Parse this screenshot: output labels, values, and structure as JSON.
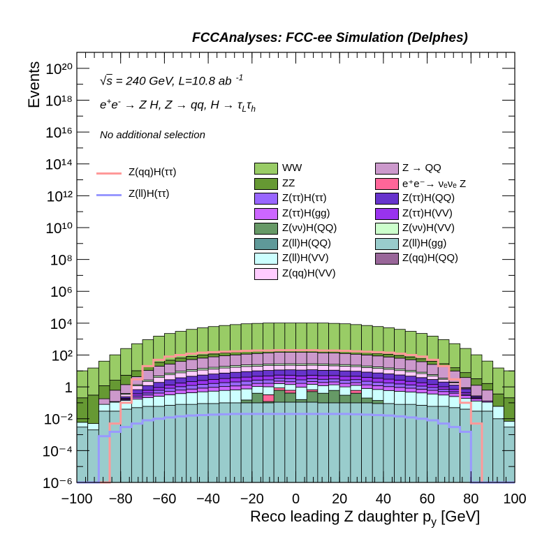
{
  "header": {
    "title": "FCCAnalyses: FCC-ee Simulation (Delphes)"
  },
  "info": {
    "line1": "√s = 240 GeV, L=10.8 ab⁻¹",
    "line2": "e⁺e⁻ → Z H, Z → qq, H → τ_L τ_h",
    "line3": "No additional selection"
  },
  "chart_data": {
    "type": "bar",
    "title": "",
    "xlabel": "Reco leading Z daughter p_y [GeV]",
    "ylabel": "Events",
    "xlim": [
      -100,
      100
    ],
    "ylim": [
      1e-06,
      1e+21
    ],
    "log_y": true,
    "bins": 40,
    "bin_width": 5,
    "grid": false,
    "legend_placement": "top",
    "xticks": [
      "−100",
      "−80",
      "−60",
      "−40",
      "−20",
      "0",
      "20",
      "40",
      "60",
      "80",
      "100"
    ],
    "yticks": [
      "10⁻⁶",
      "10⁻⁴",
      "10⁻²",
      "1",
      "10²",
      "10⁴",
      "10⁶",
      "10⁸",
      "10¹⁰",
      "10¹²",
      "10¹⁴",
      "10¹⁶",
      "10¹⁸",
      "10²⁰"
    ],
    "stack_order_note": "stacked, bottom to top",
    "stack": [
      {
        "name": "Z(ll)H(gg)",
        "color": "#99cccc",
        "values": [
          0.003,
          0.002,
          0.03,
          0.03,
          0.04,
          0.05,
          0.06,
          0.06,
          0.07,
          0.08,
          0.08,
          0.09,
          0.09,
          0.1,
          0.1,
          0.1,
          0.1,
          0.1,
          0.11,
          0.11,
          0.11,
          0.11,
          0.1,
          0.1,
          0.1,
          0.1,
          0.1,
          0.09,
          0.09,
          0.08,
          0.08,
          0.07,
          0.06,
          0.06,
          0.05,
          0.04,
          0.03,
          0.03,
          0.01,
          0.003
        ]
      },
      {
        "name": "Z(qq)H(QQ)",
        "color": "#996699",
        "values": [
          0,
          0,
          0,
          0,
          0,
          0,
          0,
          0,
          0,
          0,
          0,
          0,
          0,
          0,
          0,
          0,
          0,
          0,
          0,
          0,
          0,
          0,
          0,
          0,
          0,
          0,
          0,
          0,
          0,
          0,
          0,
          0,
          0,
          0,
          0,
          0,
          0,
          0,
          0,
          0
        ]
      },
      {
        "name": "Z(ll)H(QQ)",
        "color": "#5f9999",
        "values": [
          0,
          0,
          0,
          0,
          0,
          0,
          0,
          0,
          0,
          0,
          0,
          0,
          0,
          0,
          0,
          0,
          0,
          0,
          0,
          0,
          0,
          0,
          0,
          0,
          0,
          0,
          0,
          0,
          0,
          0,
          0,
          0,
          0,
          0,
          0,
          0,
          0,
          0,
          0,
          0
        ]
      },
      {
        "name": "Z(νν)H(QQ)",
        "color": "#669966",
        "values": [
          0,
          0,
          0,
          0,
          0,
          0,
          0,
          0,
          0,
          0,
          0,
          0,
          0,
          0,
          0,
          0.05,
          0.3,
          0.02,
          0.5,
          0.3,
          0.05,
          0.4,
          0.3,
          0.5,
          0.2,
          0.3,
          0.1,
          0.05,
          0,
          0,
          0,
          0,
          0,
          0,
          0,
          0,
          0,
          0,
          0,
          0
        ]
      },
      {
        "name": "e⁺e⁻→ νₑνₑ Z",
        "color": "#ff6699",
        "values": [
          0,
          0,
          0,
          0,
          0,
          0,
          0,
          0,
          0,
          0,
          0,
          0,
          0,
          0,
          0,
          0,
          0,
          0.2,
          0.25,
          0.2,
          0.0,
          0.15,
          0,
          0,
          0,
          0.2,
          0,
          0,
          0,
          0,
          0,
          0,
          0,
          0,
          0,
          0,
          0,
          0,
          0,
          0
        ]
      },
      {
        "name": "Z(ll)H(VV)",
        "color": "#ccffff",
        "values": [
          0.003,
          0.003,
          0.05,
          0.08,
          0.1,
          0.12,
          0.15,
          0.2,
          0.25,
          0.3,
          0.35,
          0.4,
          0.45,
          0.5,
          0.55,
          0.6,
          0.65,
          0.7,
          0.75,
          0.8,
          0.8,
          0.8,
          0.8,
          0.75,
          0.7,
          0.65,
          0.6,
          0.55,
          0.5,
          0.45,
          0.4,
          0.35,
          0.3,
          0.25,
          0.2,
          0.15,
          0.1,
          0.08,
          0.05,
          0.004
        ]
      },
      {
        "name": "Z(ττ)H(gg)",
        "color": "#cc66ff",
        "values": [
          0,
          0,
          0,
          0,
          0.02,
          0.05,
          0.1,
          0.15,
          0.2,
          0.25,
          0.3,
          0.35,
          0.4,
          0.45,
          0.5,
          0.55,
          0.6,
          0.65,
          0.7,
          0.7,
          0.7,
          0.7,
          0.7,
          0.7,
          0.65,
          0.6,
          0.55,
          0.5,
          0.45,
          0.4,
          0.35,
          0.3,
          0.25,
          0.2,
          0.15,
          0.1,
          0.05,
          0.02,
          0,
          0
        ]
      },
      {
        "name": "Z(ττ)H(ττ)",
        "color": "#9966ff",
        "values": [
          0,
          0,
          0,
          0,
          0.01,
          0.05,
          0.1,
          0.2,
          0.3,
          0.4,
          0.5,
          0.6,
          0.7,
          0.8,
          0.9,
          1,
          1,
          1.1,
          1.1,
          1.1,
          1.1,
          1.1,
          1.1,
          1.1,
          1,
          1,
          0.9,
          0.8,
          0.7,
          0.6,
          0.5,
          0.4,
          0.3,
          0.2,
          0.1,
          0.05,
          0.01,
          0,
          0,
          0
        ]
      },
      {
        "name": "Z(ττ)H(VV)",
        "color": "#9933ee",
        "values": [
          0,
          0,
          0,
          0,
          0.02,
          0.1,
          0.2,
          0.3,
          0.5,
          0.7,
          0.9,
          1.1,
          1.3,
          1.5,
          1.7,
          1.8,
          2,
          2,
          2.1,
          2.1,
          2.1,
          2.1,
          2,
          2,
          1.9,
          1.8,
          1.7,
          1.5,
          1.3,
          1.1,
          0.9,
          0.7,
          0.5,
          0.3,
          0.2,
          0.1,
          0.02,
          0,
          0,
          0
        ]
      },
      {
        "name": "Z(ττ)H(QQ)",
        "color": "#6633cc",
        "values": [
          0,
          0,
          0,
          0,
          0.05,
          0.3,
          0.6,
          1,
          1.5,
          2,
          2.5,
          3,
          3.5,
          4,
          4.5,
          5,
          5.5,
          6,
          6,
          6.5,
          6.5,
          6.5,
          6,
          6,
          5.5,
          5,
          4.5,
          4,
          3.5,
          3,
          2.5,
          2,
          1.5,
          1,
          0.6,
          0.3,
          0.05,
          0,
          0,
          0
        ]
      },
      {
        "name": "Z(qq)H(VV)",
        "color": "#ffccff",
        "values": [
          0,
          0,
          0,
          0.01,
          0.1,
          0.5,
          1,
          2,
          3,
          4,
          5,
          6,
          7,
          8,
          9,
          10,
          10,
          11,
          11,
          11,
          11,
          11,
          11,
          10,
          10,
          9,
          8,
          7,
          6,
          5,
          4,
          3,
          2,
          1,
          0.5,
          0.1,
          0.01,
          0,
          0,
          0
        ]
      },
      {
        "name": "Z(νν)H(VV)",
        "color": "#ccffcc",
        "values": [
          0,
          0,
          0,
          0,
          0.05,
          0.2,
          0.5,
          1,
          1.5,
          2,
          2.5,
          3,
          3.5,
          4,
          4.5,
          5,
          5,
          5.5,
          5.5,
          5.5,
          5.5,
          5.5,
          5.5,
          5,
          5,
          4.5,
          4,
          3.5,
          3,
          2.5,
          2,
          1.5,
          1,
          0.5,
          0.2,
          0.05,
          0,
          0,
          0,
          0
        ]
      },
      {
        "name": "Z → QQ",
        "color": "#cc99cc",
        "values": [
          0,
          0,
          0.1,
          0.5,
          1,
          3,
          8,
          15,
          20,
          30,
          40,
          50,
          60,
          70,
          80,
          90,
          100,
          110,
          120,
          120,
          120,
          120,
          110,
          110,
          100,
          90,
          80,
          70,
          60,
          50,
          40,
          30,
          20,
          15,
          8,
          3,
          1,
          0.5,
          0,
          0
        ]
      },
      {
        "name": "ZZ",
        "color": "#669933",
        "values": [
          0.2,
          0.3,
          1,
          2,
          4,
          6,
          10,
          15,
          20,
          25,
          30,
          35,
          40,
          45,
          50,
          55,
          60,
          60,
          60,
          60,
          60,
          60,
          60,
          60,
          55,
          50,
          45,
          40,
          35,
          30,
          25,
          20,
          15,
          10,
          6,
          4,
          2,
          1,
          0.3,
          0.2
        ]
      },
      {
        "name": "WW",
        "color": "#99cc66",
        "values": [
          10,
          15,
          40,
          100,
          250,
          500,
          900,
          1500,
          2200,
          3000,
          4000,
          5000,
          6000,
          7000,
          8000,
          9000,
          9500,
          10000,
          10000,
          10000,
          10000,
          10000,
          10000,
          9500,
          9000,
          8000,
          7000,
          6000,
          5000,
          4000,
          3000,
          2200,
          1500,
          900,
          500,
          250,
          100,
          40,
          15,
          10
        ]
      }
    ],
    "overlays": [
      {
        "name": "Z(qq)H(ττ)",
        "color": "#ff9999",
        "values": [
          0,
          0,
          0,
          0.005,
          0.1,
          3,
          20,
          50,
          80,
          100,
          120,
          140,
          150,
          160,
          170,
          180,
          190,
          190,
          200,
          200,
          200,
          200,
          190,
          190,
          180,
          170,
          160,
          150,
          140,
          120,
          100,
          80,
          50,
          20,
          3,
          0.1,
          0.005,
          0,
          0,
          0
        ]
      },
      {
        "name": "Z(ll)H(ττ)",
        "color": "#9999ff",
        "values": [
          0,
          0,
          0.0008,
          0.0015,
          0.003,
          0.005,
          0.008,
          0.01,
          0.012,
          0.014,
          0.016,
          0.017,
          0.018,
          0.019,
          0.02,
          0.02,
          0.02,
          0.02,
          0.02,
          0.02,
          0.02,
          0.02,
          0.02,
          0.02,
          0.02,
          0.019,
          0.018,
          0.017,
          0.016,
          0.014,
          0.012,
          0.01,
          0.008,
          0.005,
          0.003,
          0.0015,
          0,
          0,
          0,
          0
        ]
      }
    ]
  },
  "legend": {
    "overlays": [
      "Z(qq)H(ττ)",
      "Z(ll)H(ττ)"
    ],
    "col1": [
      {
        "label": "WW",
        "color": "#99cc66"
      },
      {
        "label": "ZZ",
        "color": "#669933"
      },
      {
        "label": "Z(ττ)H(ττ)",
        "color": "#9966ff"
      },
      {
        "label": "Z(ττ)H(gg)",
        "color": "#cc66ff"
      },
      {
        "label": "Z(νν)H(QQ)",
        "color": "#669966"
      },
      {
        "label": "Z(ll)H(QQ)",
        "color": "#5f9999"
      },
      {
        "label": "Z(ll)H(VV)",
        "color": "#ccffff"
      },
      {
        "label": "Z(qq)H(VV)",
        "color": "#ffccff"
      }
    ],
    "col2": [
      {
        "label": "Z → QQ",
        "color": "#cc99cc"
      },
      {
        "label": "e⁺e⁻→ νₑνₑ Z",
        "color": "#ff6699"
      },
      {
        "label": "Z(ττ)H(QQ)",
        "color": "#6633cc"
      },
      {
        "label": "Z(ττ)H(VV)",
        "color": "#9933ee"
      },
      {
        "label": "Z(νν)H(VV)",
        "color": "#ccffcc"
      },
      {
        "label": "Z(ll)H(gg)",
        "color": "#99cccc"
      },
      {
        "label": "Z(qq)H(QQ)",
        "color": "#996699"
      }
    ]
  }
}
